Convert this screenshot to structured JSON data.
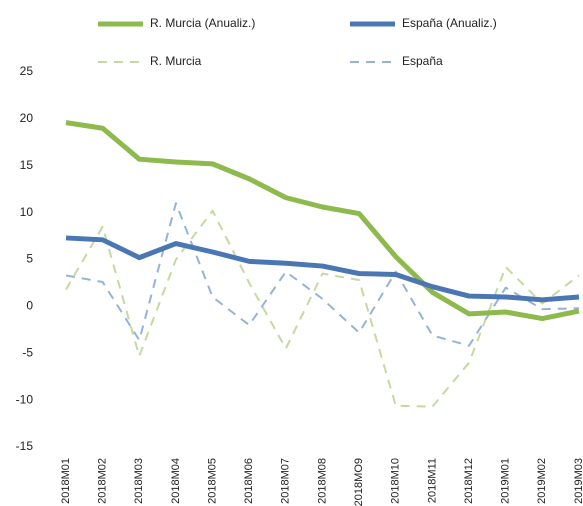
{
  "chart_data": {
    "type": "line",
    "categories": [
      "2018M01",
      "2018M02",
      "2018M03",
      "2018M04",
      "2018M05",
      "2018M06",
      "2018M07",
      "2018M08",
      "2018MO9",
      "2018M10",
      "2018M11",
      "2018M12",
      "2019M01",
      "2019M02",
      "2019M03"
    ],
    "series": [
      {
        "name": "R. Murcia  (Anualiz.)",
        "color": "#8db94d",
        "width": 5,
        "dashed": false,
        "values": [
          19.6,
          19.0,
          15.7,
          15.4,
          15.2,
          13.6,
          11.6,
          10.6,
          9.9,
          5.3,
          1.5,
          -0.8,
          -0.6,
          -1.3,
          -0.5
        ]
      },
      {
        "name": "España (Anualiz.)",
        "color": "#4a77b4",
        "width": 5,
        "dashed": false,
        "values": [
          7.3,
          7.1,
          5.2,
          6.7,
          5.8,
          4.8,
          4.6,
          4.3,
          3.5,
          3.4,
          2.1,
          1.1,
          1.0,
          0.7,
          1.0
        ]
      },
      {
        "name": "R. Murcia",
        "color": "#c5d9a0",
        "width": 2,
        "dashed": true,
        "values": [
          1.8,
          8.5,
          -5.3,
          5.0,
          10.2,
          2.5,
          -4.5,
          3.5,
          2.8,
          -10.6,
          -10.7,
          -6.0,
          4.2,
          0.3,
          3.3
        ]
      },
      {
        "name": "España",
        "color": "#95b3d7",
        "width": 2,
        "dashed": true,
        "values": [
          3.3,
          2.6,
          -3.6,
          11.0,
          1.0,
          -2.0,
          3.7,
          0.8,
          -2.8,
          3.7,
          -3.1,
          -4.2,
          2.0,
          -0.3,
          -0.2
        ]
      }
    ],
    "ylim": [
      -15,
      25
    ],
    "yticks": [
      -15,
      -10,
      -5,
      0,
      5,
      10,
      15,
      20,
      25
    ],
    "grid": false
  }
}
